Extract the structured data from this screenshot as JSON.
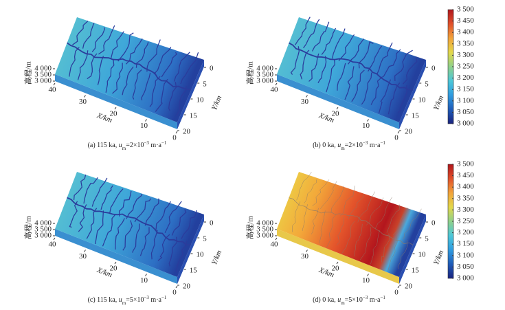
{
  "chart_data": [
    {
      "type": "surface3d",
      "xlabel": "X/km",
      "ylabel": "Y/km",
      "zlabel": "高程/m",
      "xlim": [
        0,
        40
      ],
      "xticks": [
        0,
        10,
        20,
        30,
        40
      ],
      "ylim": [
        0,
        20
      ],
      "yticks": [
        0,
        5,
        10,
        15,
        20
      ],
      "zlim": [
        3000,
        4000
      ],
      "zticks": [
        {
          "value": 3000,
          "label": "3 000"
        },
        {
          "value": 3500,
          "label": "3 500"
        },
        {
          "value": 4000,
          "label": "4 000"
        }
      ],
      "caption_runs": [
        {
          "text": "(a) 115 ka, "
        },
        {
          "text": "u",
          "format": "italic"
        },
        {
          "text": "m",
          "format": "sub"
        },
        {
          "text": "=2×10"
        },
        {
          "text": "−3",
          "format": "sup"
        },
        {
          "text": " m·a"
        },
        {
          "text": "−1",
          "format": "sup"
        }
      ]
    },
    {
      "type": "surface3d",
      "xlabel": "X/km",
      "ylabel": "Y/km",
      "zlabel": "高程/m",
      "xlim": [
        0,
        40
      ],
      "xticks": [
        0,
        10,
        20,
        30,
        40
      ],
      "ylim": [
        0,
        20
      ],
      "yticks": [
        0,
        5,
        10,
        15,
        20
      ],
      "zlim": [
        3000,
        4000
      ],
      "zticks": [
        {
          "value": 3000,
          "label": "3 000"
        },
        {
          "value": 3500,
          "label": "3 500"
        },
        {
          "value": 4000,
          "label": "4 000"
        }
      ],
      "caption_runs": [
        {
          "text": "(b) 0 ka, "
        },
        {
          "text": "u",
          "format": "italic"
        },
        {
          "text": "m",
          "format": "sub"
        },
        {
          "text": "=2×10"
        },
        {
          "text": "−3",
          "format": "sup"
        },
        {
          "text": " m·a"
        },
        {
          "text": "−1",
          "format": "sup"
        }
      ],
      "colorbar": {
        "clim": [
          3000,
          3500
        ],
        "colors": [
          "#1a237e",
          "#1e5bb8",
          "#2f9be0",
          "#4cc7d8",
          "#8fd18a",
          "#e3d84a",
          "#f2a33a",
          "#e0502a",
          "#b0151b"
        ],
        "ticks": [
          {
            "value": 3000,
            "label": "3 000"
          },
          {
            "value": 3050,
            "label": "3 050"
          },
          {
            "value": 3100,
            "label": "3 100"
          },
          {
            "value": 3150,
            "label": "3 150"
          },
          {
            "value": 3200,
            "label": "3 200"
          },
          {
            "value": 3250,
            "label": "3 250"
          },
          {
            "value": 3300,
            "label": "3 300"
          },
          {
            "value": 3350,
            "label": "3 350"
          },
          {
            "value": 3400,
            "label": "3 400"
          },
          {
            "value": 3450,
            "label": "3 450"
          },
          {
            "value": 3500,
            "label": "3 500"
          }
        ]
      }
    },
    {
      "type": "surface3d",
      "xlabel": "X/km",
      "ylabel": "Y/km",
      "zlabel": "高程/m",
      "xlim": [
        0,
        40
      ],
      "xticks": [
        0,
        10,
        20,
        30,
        40
      ],
      "ylim": [
        0,
        20
      ],
      "yticks": [
        0,
        5,
        10,
        15,
        20
      ],
      "zlim": [
        3000,
        4000
      ],
      "zticks": [
        {
          "value": 3000,
          "label": "3 000"
        },
        {
          "value": 3500,
          "label": "3 500"
        },
        {
          "value": 4000,
          "label": "4 000"
        }
      ],
      "caption_runs": [
        {
          "text": "(c) 115 ka, "
        },
        {
          "text": "u",
          "format": "italic"
        },
        {
          "text": "m",
          "format": "sub"
        },
        {
          "text": "=5×10"
        },
        {
          "text": "−3",
          "format": "sup"
        },
        {
          "text": " m·a"
        },
        {
          "text": "−1",
          "format": "sup"
        }
      ]
    },
    {
      "type": "surface3d",
      "xlabel": "X/km",
      "ylabel": "Y/km",
      "zlabel": "高程/m",
      "xlim": [
        0,
        40
      ],
      "xticks": [
        0,
        10,
        20,
        30,
        40
      ],
      "ylim": [
        0,
        20
      ],
      "yticks": [
        0,
        5,
        10,
        15,
        20
      ],
      "zlim": [
        3000,
        4000
      ],
      "zticks": [
        {
          "value": 3000,
          "label": "3 000"
        },
        {
          "value": 3500,
          "label": "3 500"
        },
        {
          "value": 4000,
          "label": "4 000"
        }
      ],
      "caption_runs": [
        {
          "text": "(d) 0 ka, "
        },
        {
          "text": "u",
          "format": "italic"
        },
        {
          "text": "m",
          "format": "sub"
        },
        {
          "text": "=5×10"
        },
        {
          "text": "−3",
          "format": "sup"
        },
        {
          "text": " m·a"
        },
        {
          "text": "−1",
          "format": "sup"
        }
      ],
      "colorbar": {
        "clim": [
          3000,
          3500
        ],
        "colors": [
          "#1a237e",
          "#1e5bb8",
          "#2f9be0",
          "#4cc7d8",
          "#8fd18a",
          "#e3d84a",
          "#f2a33a",
          "#e0502a",
          "#b0151b"
        ],
        "ticks": [
          {
            "value": 3000,
            "label": "3 000"
          },
          {
            "value": 3050,
            "label": "3 050"
          },
          {
            "value": 3100,
            "label": "3 100"
          },
          {
            "value": 3150,
            "label": "3 150"
          },
          {
            "value": 3200,
            "label": "3 200"
          },
          {
            "value": 3250,
            "label": "3 250"
          },
          {
            "value": 3300,
            "label": "3 300"
          },
          {
            "value": 3350,
            "label": "3 350"
          },
          {
            "value": 3400,
            "label": "3 400"
          },
          {
            "value": 3450,
            "label": "3 450"
          },
          {
            "value": 3500,
            "label": "3 500"
          }
        ]
      }
    }
  ]
}
